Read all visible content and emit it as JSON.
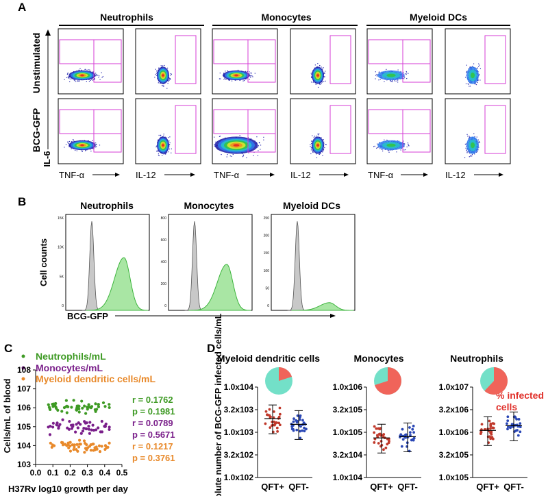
{
  "panel_labels": [
    "A",
    "B",
    "C",
    "D"
  ],
  "panelA": {
    "groups": [
      "Neutrophils",
      "Monocytes",
      "Myeloid DCs"
    ],
    "rows": [
      "Unstimulated",
      "BCG-GFP"
    ],
    "y_axis": "IL-6",
    "x_axes": [
      "TNF-α",
      "IL-12",
      "TNF-α",
      "IL-12",
      "TNF-α",
      "IL-12"
    ]
  },
  "panelB": {
    "titles": [
      "Neutrophils",
      "Monocytes",
      "Myeloid DCs"
    ],
    "ylabel": "Cell counts",
    "xlabel": "BCG-GFP",
    "yticks": [
      [
        "15K",
        "10K",
        "5K",
        "0"
      ],
      [
        "800",
        "600",
        "400",
        "200",
        "0"
      ],
      [
        "250",
        "200",
        "150",
        "100",
        "50",
        "0"
      ]
    ],
    "colors": {
      "control": "#c8c8c8",
      "gfp": "#a9e6a4",
      "gfp_line": "#3cb43c"
    }
  },
  "chart_data": [
    {
      "type": "scatter",
      "panel": "C",
      "xlabel": "H37Rv log10 growth per day",
      "ylabel": "Cells/mL of blood",
      "xlim": [
        0.0,
        0.5
      ],
      "ylim": [
        1000,
        100000000
      ],
      "yscale": "log",
      "xticks": [
        "0.0",
        "0.1",
        "0.2",
        "0.3",
        "0.4",
        "0.5"
      ],
      "yticks": [
        "103",
        "104",
        "105",
        "106",
        "107",
        "108"
      ],
      "series": [
        {
          "name": "Neutrophils/mL",
          "color": "#3e9a24",
          "y_center": 1000000,
          "r": "r = 0.1762",
          "p": "p = 0.1981"
        },
        {
          "name": "Monocytes/mL",
          "color": "#7a1f8a",
          "y_center": 100000,
          "r": "r = 0.0789",
          "p": "p = 0.5671"
        },
        {
          "name": "Myeloid dendritic cells/mL",
          "color": "#e8892a",
          "y_center": 10000,
          "r": "r = 0.1217",
          "p": "p = 0.3761"
        }
      ]
    },
    {
      "type": "scatter",
      "panel": "D",
      "ylabel": "Absolute number of BCG-GFP infected cells/mL",
      "categories": [
        "QFT+",
        "QFT-"
      ],
      "colors": {
        "qft_pos": "#c0392b",
        "qft_neg": "#2a47b5",
        "pie_infected": "#f0645a",
        "pie_other": "#73e0c8"
      },
      "pie_legend": "% infected cells",
      "plots": [
        {
          "title": "Myeloid dendritic cells",
          "yticks": [
            "1.0x104",
            "3.2x103",
            "1.0x103",
            "3.2x102",
            "1.0x102"
          ],
          "log_range": [
            2,
            4
          ],
          "medians": [
            2000,
            1500
          ],
          "infected_fraction": 0.2
        },
        {
          "title": "Monocytes",
          "yticks": [
            "1.0x106",
            "3.2x105",
            "1.0x105",
            "3.2x104",
            "1.0x104"
          ],
          "log_range": [
            4,
            6
          ],
          "medians": [
            75000,
            80000
          ],
          "infected_fraction": 0.7
        },
        {
          "title": "Neutrophils",
          "yticks": [
            "1.0x107",
            "3.2x106",
            "1.0x106",
            "3.2x105",
            "1.0x105"
          ],
          "log_range": [
            5,
            7
          ],
          "medians": [
            1100000,
            1400000
          ],
          "infected_fraction": 0.62
        }
      ]
    }
  ]
}
